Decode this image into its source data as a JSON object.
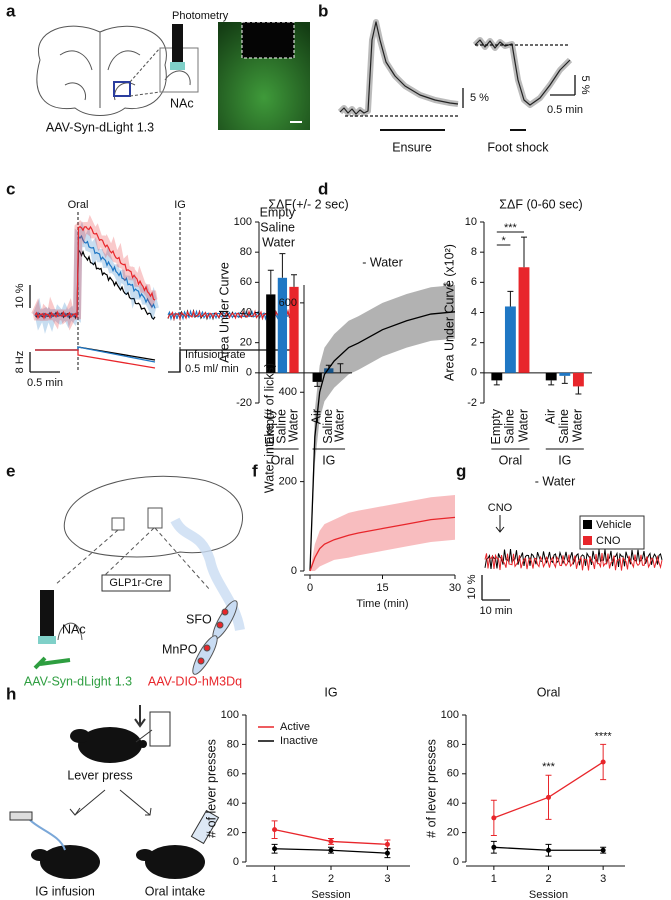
{
  "panel_labels": [
    "a",
    "b",
    "c",
    "d",
    "e",
    "f",
    "g",
    "h"
  ],
  "a": {
    "photometry": "Photometry",
    "region": "NAc",
    "virus": "AAV-Syn-dLight 1.3"
  },
  "b": {
    "scale_1": "5 %",
    "scale_2": "5 %",
    "time_scale": "0.5 min",
    "stimulus_1": "Ensure",
    "stimulus_2": "Foot shock"
  },
  "c": {
    "event_1": "Oral",
    "event_2": "IG",
    "legend": [
      {
        "name": "Empty",
        "color": "#000000"
      },
      {
        "name": "Saline",
        "color": "#1f77c4"
      },
      {
        "name": "Water",
        "color": "#e8262b"
      }
    ],
    "scale_signal": "10 %",
    "scale_lick": "8 Hz",
    "time_scale": "0.5 min",
    "rate_label": "Infusion rate",
    "rate_scale": "0.5 ml/ min"
  },
  "e": {
    "driver": "GLP1r-Cre",
    "region_1": "NAc",
    "region_2": "SFO",
    "region_3": "MnPO",
    "virus_1": "AAV-Syn-dLight 1.3",
    "virus_2": "AAV-DIO-hM3Dq"
  },
  "g": {
    "title": "- Water",
    "event": "CNO",
    "legend": [
      {
        "name": "Vehicle",
        "color": "#000000"
      },
      {
        "name": "CNO",
        "color": "#e8262b"
      }
    ],
    "scale_signal": "10 %",
    "time_scale": "10 min"
  },
  "h_diagram": {
    "step_1": "Lever press",
    "option_1": "IG infusion",
    "option_2": "Oral intake"
  },
  "chart_data": [
    {
      "type": "bar",
      "title": "ΣΔF(+/- 2 sec)",
      "y_label": "Area Under Curve",
      "categories": [
        "Empty",
        "Saline",
        "Water",
        "Air",
        "Saline",
        "Water"
      ],
      "groups": [
        "Oral",
        "IG"
      ],
      "values": [
        52,
        63,
        57,
        -6,
        3,
        0
      ],
      "errors": [
        16,
        16,
        8,
        3,
        2,
        6
      ],
      "colors": [
        "#000000",
        "#1f77c4",
        "#e8262b",
        "#000000",
        "#1f77c4",
        "#e8262b"
      ],
      "ylim": [
        -20,
        100
      ],
      "yticks": [
        -20,
        0,
        20,
        40,
        60,
        80,
        100
      ]
    },
    {
      "type": "bar",
      "title": "ΣΔF (0-60 sec)",
      "y_label": "Area Under Curve (x10²)",
      "categories": [
        "Empty",
        "Saline",
        "Water",
        "Air",
        "Saline",
        "Water"
      ],
      "groups": [
        "Oral",
        "IG"
      ],
      "values": [
        -0.5,
        4.4,
        7.0,
        -0.5,
        -0.2,
        -0.9
      ],
      "errors": [
        0.3,
        1.0,
        2.0,
        0.3,
        0.5,
        0.5
      ],
      "colors": [
        "#000000",
        "#1f77c4",
        "#e8262b",
        "#000000",
        "#1f77c4",
        "#e8262b"
      ],
      "annotations": [
        "***",
        "*"
      ],
      "ylim": [
        -2,
        10
      ],
      "yticks": [
        -2,
        0,
        2,
        4,
        6,
        8,
        10
      ]
    },
    {
      "type": "line",
      "title": "- Water",
      "x_label": "Time (min)",
      "y_label": "Water intake (# of licks)",
      "x": [
        0,
        1,
        2,
        3,
        5,
        8,
        10,
        15,
        20,
        25,
        30
      ],
      "series": [
        {
          "color": "#000000",
          "values": [
            0,
            300,
            400,
            440,
            470,
            500,
            510,
            540,
            560,
            575,
            580
          ],
          "errors": [
            0,
            60,
            60,
            60,
            60,
            60,
            60,
            60,
            60,
            60,
            60
          ]
        },
        {
          "color": "#e8262b",
          "values": [
            0,
            30,
            50,
            60,
            70,
            80,
            85,
            95,
            105,
            115,
            120
          ],
          "errors": [
            0,
            30,
            40,
            45,
            45,
            50,
            50,
            50,
            50,
            50,
            50
          ]
        }
      ],
      "error_style": "band",
      "annotation": "**",
      "xlim": [
        0,
        30
      ],
      "xticks": [
        0,
        15,
        30
      ],
      "ylim": [
        0,
        640
      ],
      "yticks": [
        0,
        200,
        400,
        600
      ]
    },
    {
      "type": "line",
      "title": "IG",
      "x_label": "Session",
      "y_label": "# of lever presses",
      "x": [
        1,
        2,
        3
      ],
      "series": [
        {
          "name": "Active",
          "color": "#e8262b",
          "values": [
            22,
            14,
            12
          ],
          "errors": [
            6,
            2,
            3
          ]
        },
        {
          "name": "Inactive",
          "color": "#000000",
          "values": [
            9,
            8,
            6
          ],
          "errors": [
            3,
            2,
            3
          ]
        }
      ],
      "error_style": "bar",
      "markers": true,
      "legend": "upper left",
      "xlim": [
        0.6,
        3.4
      ],
      "xticks": [
        1,
        2,
        3
      ],
      "ylim": [
        0,
        100
      ],
      "yticks": [
        0,
        20,
        40,
        60,
        80,
        100
      ]
    },
    {
      "type": "line",
      "title": "Oral",
      "x_label": "Session",
      "y_label": "# of lever presses",
      "x": [
        1,
        2,
        3
      ],
      "series": [
        {
          "color": "#e8262b",
          "values": [
            30,
            44,
            68
          ],
          "errors": [
            12,
            15,
            12
          ]
        },
        {
          "color": "#000000",
          "values": [
            10,
            8,
            8
          ],
          "errors": [
            4,
            4,
            2
          ]
        }
      ],
      "point_annotations": [
        null,
        "***",
        "****"
      ],
      "error_style": "bar",
      "markers": true,
      "xlim": [
        0.6,
        3.4
      ],
      "xticks": [
        1,
        2,
        3
      ],
      "ylim": [
        0,
        100
      ],
      "yticks": [
        0,
        20,
        40,
        60,
        80,
        100
      ]
    }
  ]
}
